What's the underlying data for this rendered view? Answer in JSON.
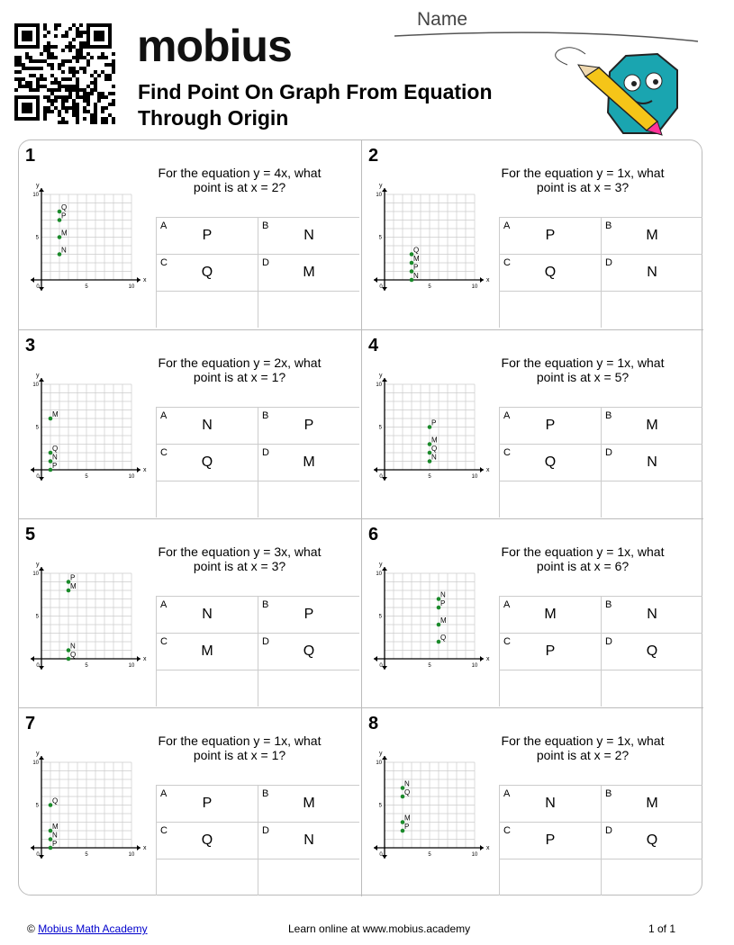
{
  "header": {
    "logo": "mobius",
    "title_line1": "Find Point On Graph From Equation",
    "title_line2": "Through Origin",
    "name_label": "Name"
  },
  "graph": {
    "xlabel": "x",
    "ylabel": "y",
    "xlim": [
      0,
      10
    ],
    "ylim": [
      0,
      10
    ],
    "ticks": [
      0,
      5,
      10
    ]
  },
  "problems": [
    {
      "number": "1",
      "question": "For the equation y = 4x, what point is at x = 2?",
      "points": [
        {
          "label": "Q",
          "x": 2,
          "y": 8
        },
        {
          "label": "P",
          "x": 2,
          "y": 7
        },
        {
          "label": "M",
          "x": 2,
          "y": 5
        },
        {
          "label": "N",
          "x": 2,
          "y": 3
        }
      ],
      "options": [
        {
          "letter": "A",
          "answer": "P"
        },
        {
          "letter": "B",
          "answer": "N"
        },
        {
          "letter": "C",
          "answer": "Q"
        },
        {
          "letter": "D",
          "answer": "M"
        }
      ]
    },
    {
      "number": "2",
      "question": "For the equation y = 1x, what point is at x = 3?",
      "points": [
        {
          "label": "Q",
          "x": 3,
          "y": 3
        },
        {
          "label": "M",
          "x": 3,
          "y": 2
        },
        {
          "label": "P",
          "x": 3,
          "y": 1
        },
        {
          "label": "N",
          "x": 3,
          "y": 0
        }
      ],
      "options": [
        {
          "letter": "A",
          "answer": "P"
        },
        {
          "letter": "B",
          "answer": "M"
        },
        {
          "letter": "C",
          "answer": "Q"
        },
        {
          "letter": "D",
          "answer": "N"
        }
      ]
    },
    {
      "number": "3",
      "question": "For the equation y = 2x, what point is at x = 1?",
      "points": [
        {
          "label": "M",
          "x": 1,
          "y": 6
        },
        {
          "label": "Q",
          "x": 1,
          "y": 2
        },
        {
          "label": "N",
          "x": 1,
          "y": 1
        },
        {
          "label": "P",
          "x": 1,
          "y": 0
        }
      ],
      "options": [
        {
          "letter": "A",
          "answer": "N"
        },
        {
          "letter": "B",
          "answer": "P"
        },
        {
          "letter": "C",
          "answer": "Q"
        },
        {
          "letter": "D",
          "answer": "M"
        }
      ]
    },
    {
      "number": "4",
      "question": "For the equation y = 1x, what point is at x = 5?",
      "points": [
        {
          "label": "P",
          "x": 5,
          "y": 5
        },
        {
          "label": "M",
          "x": 5,
          "y": 3
        },
        {
          "label": "Q",
          "x": 5,
          "y": 2
        },
        {
          "label": "N",
          "x": 5,
          "y": 1
        }
      ],
      "options": [
        {
          "letter": "A",
          "answer": "P"
        },
        {
          "letter": "B",
          "answer": "M"
        },
        {
          "letter": "C",
          "answer": "Q"
        },
        {
          "letter": "D",
          "answer": "N"
        }
      ]
    },
    {
      "number": "5",
      "question": "For the equation y = 3x, what point is at x = 3?",
      "points": [
        {
          "label": "P",
          "x": 3,
          "y": 9
        },
        {
          "label": "M",
          "x": 3,
          "y": 8
        },
        {
          "label": "N",
          "x": 3,
          "y": 1
        },
        {
          "label": "Q",
          "x": 3,
          "y": 0
        }
      ],
      "options": [
        {
          "letter": "A",
          "answer": "N"
        },
        {
          "letter": "B",
          "answer": "P"
        },
        {
          "letter": "C",
          "answer": "M"
        },
        {
          "letter": "D",
          "answer": "Q"
        }
      ]
    },
    {
      "number": "6",
      "question": "For the equation y = 1x, what point is at x = 6?",
      "points": [
        {
          "label": "N",
          "x": 6,
          "y": 7
        },
        {
          "label": "P",
          "x": 6,
          "y": 6
        },
        {
          "label": "M",
          "x": 6,
          "y": 4
        },
        {
          "label": "Q",
          "x": 6,
          "y": 2
        }
      ],
      "options": [
        {
          "letter": "A",
          "answer": "M"
        },
        {
          "letter": "B",
          "answer": "N"
        },
        {
          "letter": "C",
          "answer": "P"
        },
        {
          "letter": "D",
          "answer": "Q"
        }
      ]
    },
    {
      "number": "7",
      "question": "For the equation y = 1x, what point is at x = 1?",
      "points": [
        {
          "label": "Q",
          "x": 1,
          "y": 5
        },
        {
          "label": "M",
          "x": 1,
          "y": 2
        },
        {
          "label": "N",
          "x": 1,
          "y": 1
        },
        {
          "label": "P",
          "x": 1,
          "y": 0
        }
      ],
      "options": [
        {
          "letter": "A",
          "answer": "P"
        },
        {
          "letter": "B",
          "answer": "M"
        },
        {
          "letter": "C",
          "answer": "Q"
        },
        {
          "letter": "D",
          "answer": "N"
        }
      ]
    },
    {
      "number": "8",
      "question": "For the equation y = 1x, what point is at x = 2?",
      "points": [
        {
          "label": "N",
          "x": 2,
          "y": 7
        },
        {
          "label": "Q",
          "x": 2,
          "y": 6
        },
        {
          "label": "M",
          "x": 2,
          "y": 3
        },
        {
          "label": "P",
          "x": 2,
          "y": 2
        }
      ],
      "options": [
        {
          "letter": "A",
          "answer": "N"
        },
        {
          "letter": "B",
          "answer": "M"
        },
        {
          "letter": "C",
          "answer": "P"
        },
        {
          "letter": "D",
          "answer": "Q"
        }
      ]
    }
  ],
  "footer": {
    "copyright": "©",
    "link": "Mobius Math Academy",
    "center": "Learn online at www.mobius.academy",
    "page": "1 of 1"
  }
}
